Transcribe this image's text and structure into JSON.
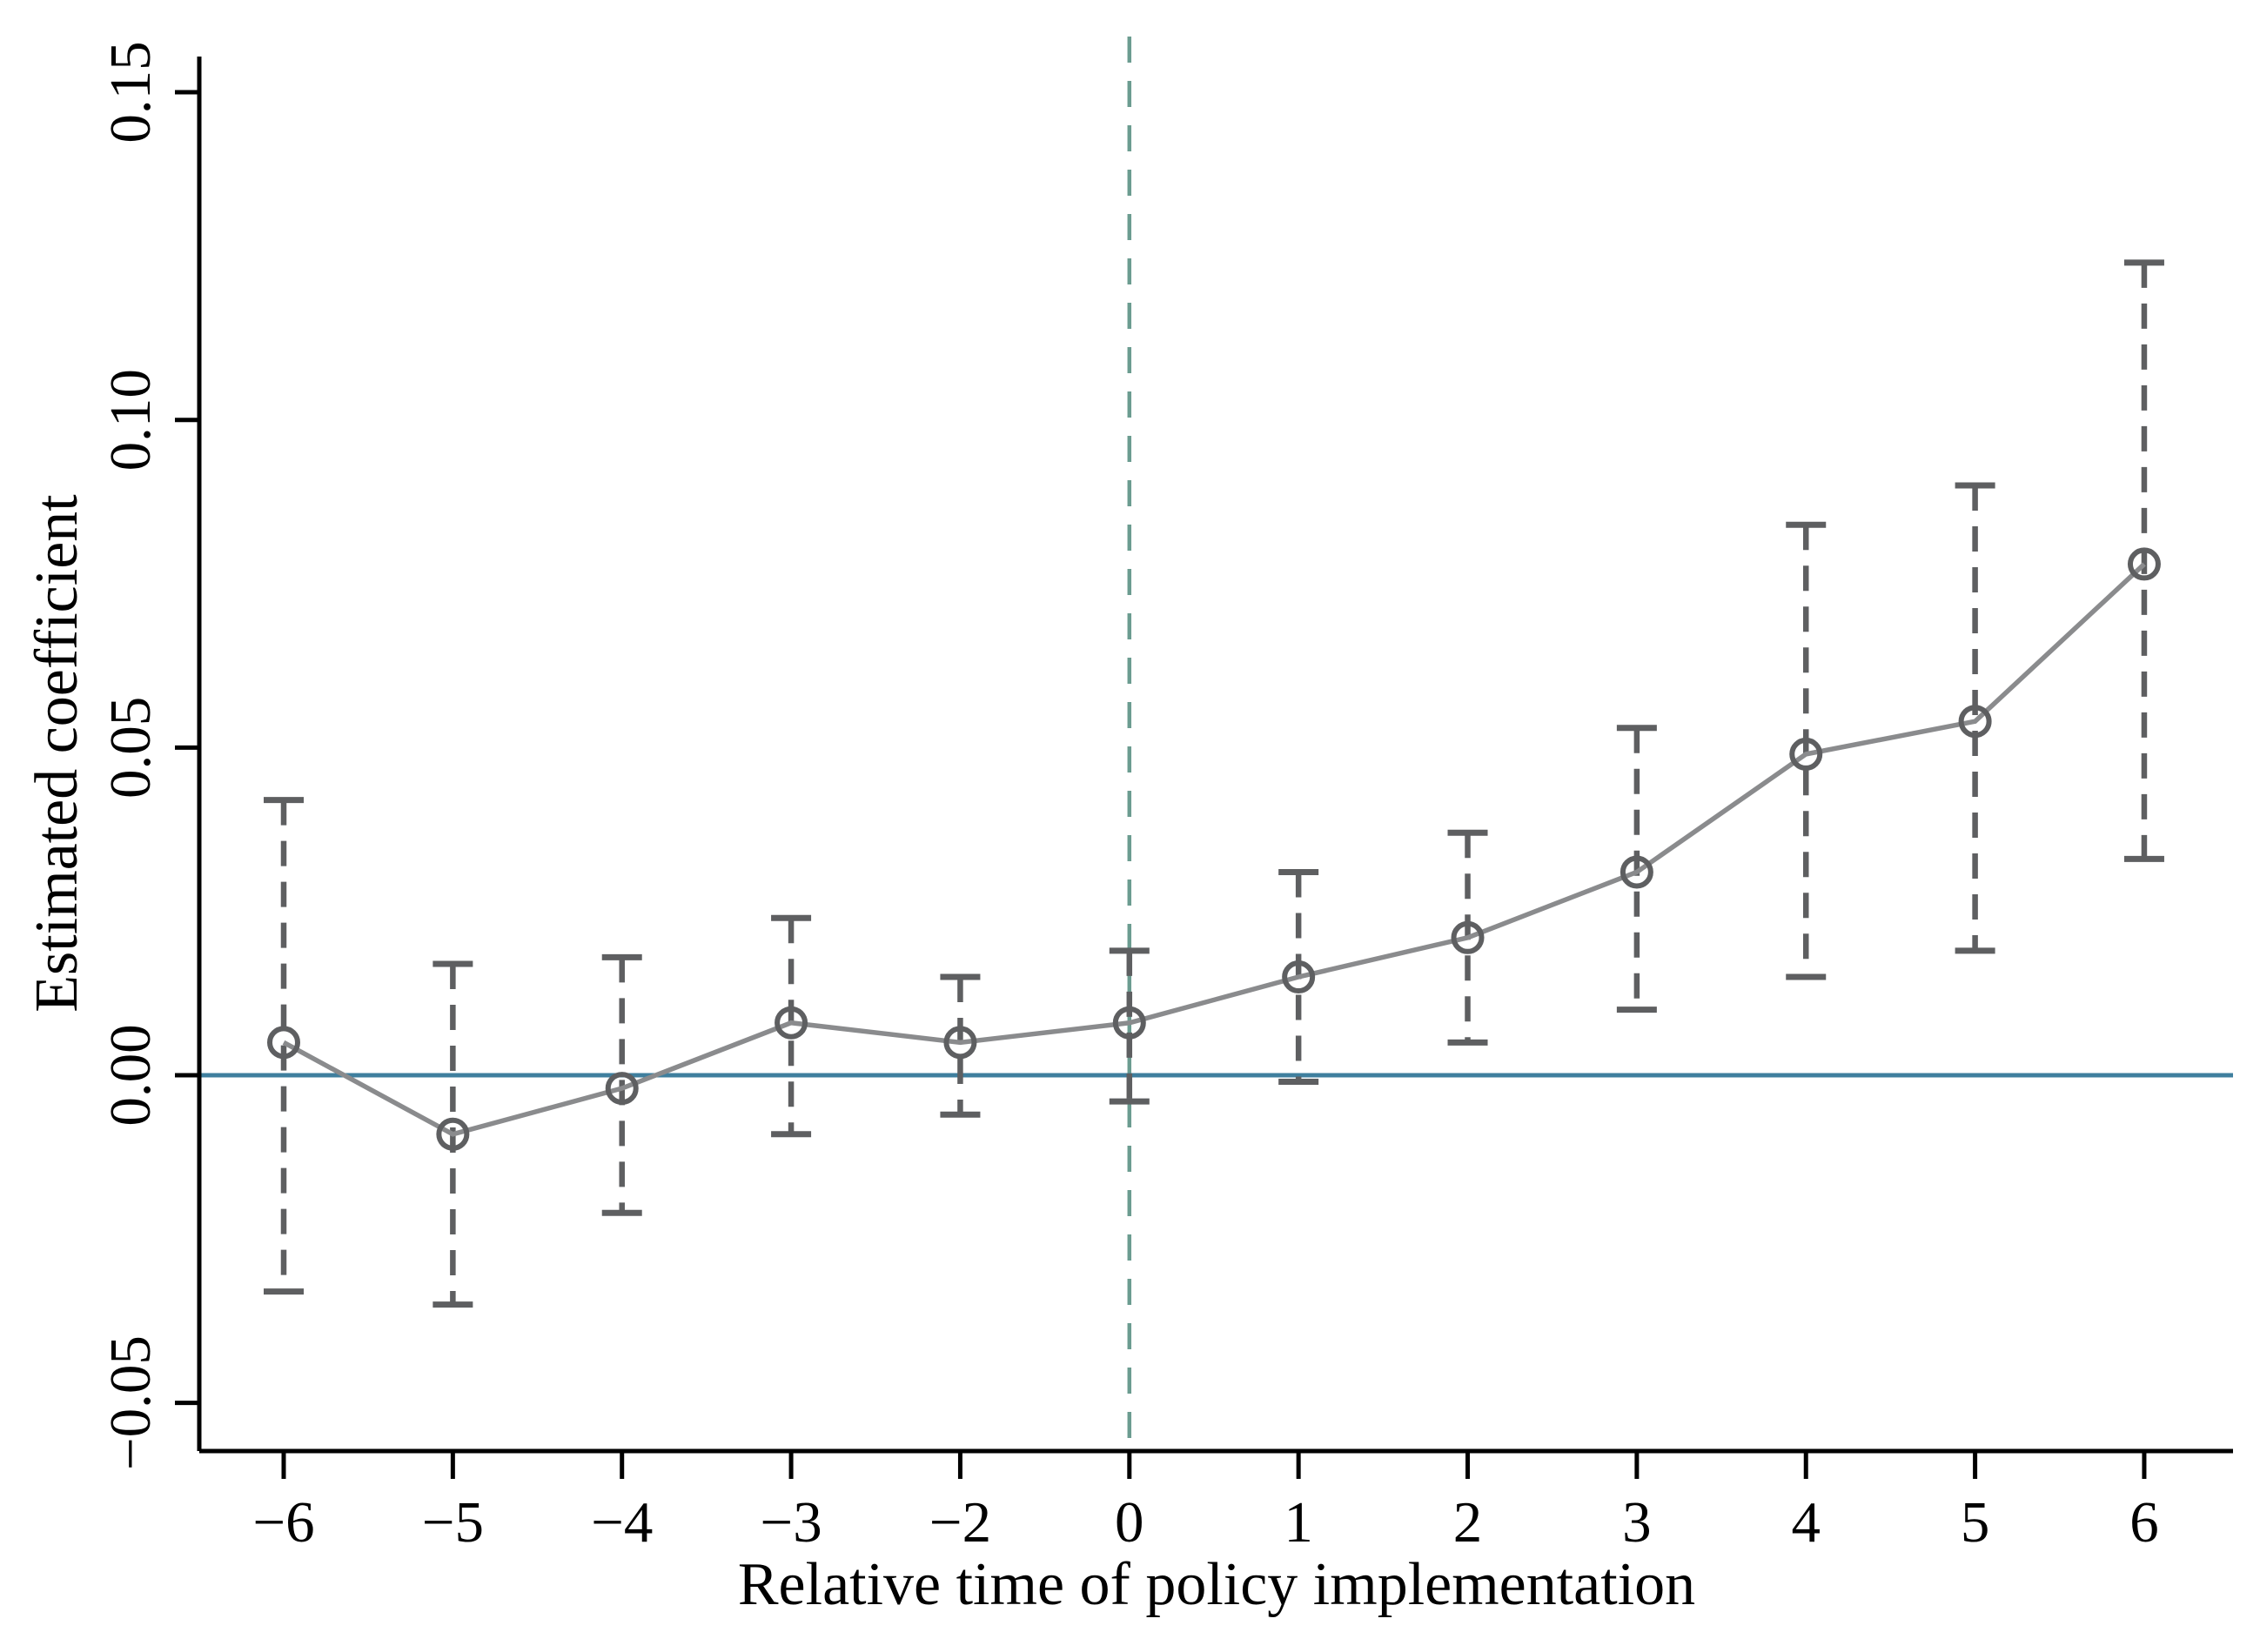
{
  "figure": {
    "background": "#ffffff"
  },
  "colors": {
    "axis": "#000000",
    "zero_line_blue": "#3f7f9e",
    "event_line_teal": "#6b9c90",
    "marker_gray": "#5e5f61",
    "connect_line_gray": "#8a8b8d"
  },
  "chart_data": {
    "type": "line",
    "title": "",
    "xlabel": "Relative time of policy implementation",
    "ylabel": "Estimated coefficient",
    "grid": "off",
    "legend": "none",
    "marker_style": "hollow-circle",
    "error_bar_style": "dashed-with-caps",
    "ylim": [
      -0.057,
      0.155
    ],
    "y_ticks": [
      {
        "value": 0.15,
        "label": "0.15"
      },
      {
        "value": 0.1,
        "label": "0.10"
      },
      {
        "value": 0.05,
        "label": "0.05"
      },
      {
        "value": 0.0,
        "label": "0.00"
      },
      {
        "value": -0.05,
        "label": "−0.05"
      }
    ],
    "x_categories": [
      "−6",
      "−5",
      "−4",
      "−3",
      "−2",
      "0",
      "1",
      "2",
      "3",
      "4",
      "5",
      "6"
    ],
    "zero_reference_line_y": 0.0,
    "event_reference_line_x": "0",
    "series": [
      {
        "name": "estimated coefficient",
        "points": [
          {
            "x": "−6",
            "coef": 0.005,
            "ci_low": -0.033,
            "ci_high": 0.042
          },
          {
            "x": "−5",
            "coef": -0.009,
            "ci_low": -0.035,
            "ci_high": 0.017
          },
          {
            "x": "−4",
            "coef": -0.002,
            "ci_low": -0.021,
            "ci_high": 0.018
          },
          {
            "x": "−3",
            "coef": 0.008,
            "ci_low": -0.009,
            "ci_high": 0.024
          },
          {
            "x": "−2",
            "coef": 0.005,
            "ci_low": -0.006,
            "ci_high": 0.015
          },
          {
            "x": "0",
            "coef": 0.008,
            "ci_low": -0.004,
            "ci_high": 0.019
          },
          {
            "x": "1",
            "coef": 0.015,
            "ci_low": -0.001,
            "ci_high": 0.031
          },
          {
            "x": "2",
            "coef": 0.021,
            "ci_low": 0.005,
            "ci_high": 0.037
          },
          {
            "x": "3",
            "coef": 0.031,
            "ci_low": 0.01,
            "ci_high": 0.053
          },
          {
            "x": "4",
            "coef": 0.049,
            "ci_low": 0.015,
            "ci_high": 0.084
          },
          {
            "x": "5",
            "coef": 0.054,
            "ci_low": 0.019,
            "ci_high": 0.09
          },
          {
            "x": "6",
            "coef": 0.078,
            "ci_low": 0.033,
            "ci_high": 0.124
          }
        ]
      }
    ]
  }
}
